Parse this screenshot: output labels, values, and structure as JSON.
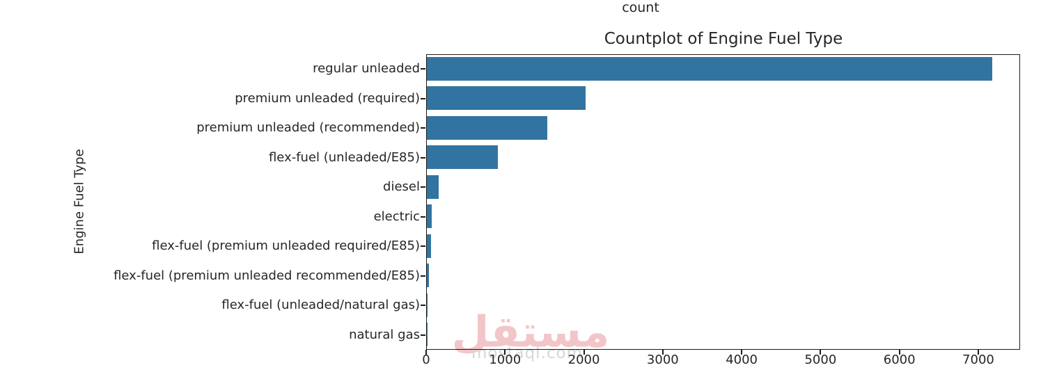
{
  "figure": {
    "top_label": "count",
    "background": "#ffffff",
    "text_color": "#262626",
    "spine_color": "#1a1a1a"
  },
  "chart_data": {
    "type": "bar",
    "orientation": "horizontal",
    "title": "Countplot of Engine Fuel Type",
    "xlabel": "",
    "ylabel": "Engine Fuel Type",
    "categories": [
      "regular unleaded",
      "premium unleaded (required)",
      "premium unleaded (recommended)",
      "flex-fuel (unleaded/E85)",
      "diesel",
      "electric",
      "flex-fuel (premium unleaded required/E85)",
      "flex-fuel (premium unleaded recommended/E85)",
      "flex-fuel (unleaded/natural gas)",
      "natural gas"
    ],
    "values": [
      7172,
      2009,
      1523,
      899,
      153,
      66,
      55,
      26,
      6,
      2
    ],
    "xticks": [
      0,
      1000,
      2000,
      3000,
      4000,
      5000,
      6000,
      7000
    ],
    "xlim": [
      0,
      7530
    ],
    "bar_color": "#3274a1",
    "bar_band_fraction": 0.8,
    "grid": false,
    "legend": null
  },
  "watermark": {
    "arabic": "مستقل",
    "domain": "mostaql.com",
    "arabic_color": "#f2c6c9",
    "domain_color": "#d6d6d6"
  }
}
